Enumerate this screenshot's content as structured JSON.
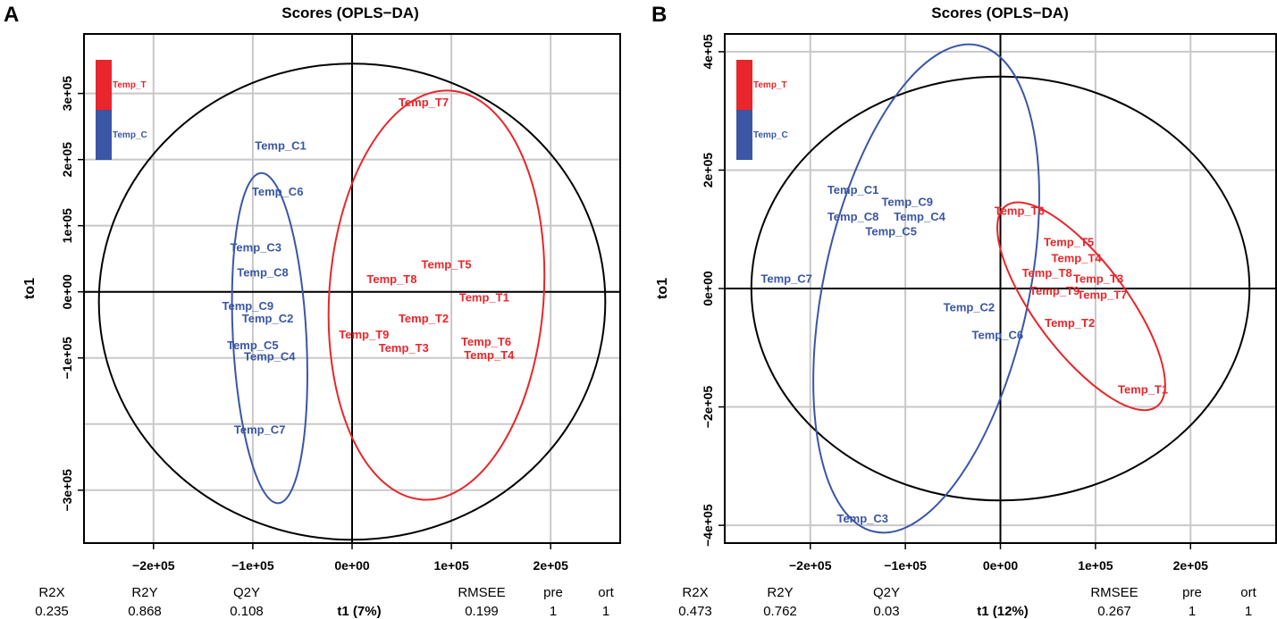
{
  "colors": {
    "temp_t": "#e8262b",
    "temp_c": "#3a56a5",
    "axis": "#000000",
    "grid": "#c8c8c8"
  },
  "chart_data": [
    {
      "panel_letter": "A",
      "type": "scatter",
      "title": "Scores (OPLS−DA)",
      "xlabel": "t1 (7%)",
      "ylabel": "to1",
      "xlim": [
        -270000,
        270000
      ],
      "ylim": [
        -380000,
        390000
      ],
      "xticks": [
        {
          "value": -200000,
          "label": "−2e+05"
        },
        {
          "value": -100000,
          "label": "−1e+05"
        },
        {
          "value": 0,
          "label": "0e+00"
        },
        {
          "value": 100000,
          "label": "1e+05"
        },
        {
          "value": 200000,
          "label": "2e+05"
        }
      ],
      "yticks": [
        {
          "value": 300000,
          "label": "3e+05"
        },
        {
          "value": 200000,
          "label": "2e+05"
        },
        {
          "value": 100000,
          "label": "1e+05"
        },
        {
          "value": 0,
          "label": "0e+00"
        },
        {
          "value": -100000,
          "label": "−1e+05"
        },
        {
          "value": -300000,
          "label": "−3e+05"
        }
      ],
      "xgrid": [
        -200000,
        -100000,
        0,
        100000,
        200000
      ],
      "ygrid": [
        300000,
        200000,
        100000,
        0,
        -100000,
        -200000,
        -300000
      ],
      "grid": true,
      "legend_position": "top-left",
      "legend": [
        {
          "label": "Temp_T",
          "group": "temp_t"
        },
        {
          "label": "Temp_C",
          "group": "temp_c"
        }
      ],
      "points": [
        {
          "label": "Temp_T7",
          "group": "temp_t",
          "x": 72000,
          "y": 285000
        },
        {
          "label": "Temp_T5",
          "group": "temp_t",
          "x": 95000,
          "y": 40000
        },
        {
          "label": "Temp_T8",
          "group": "temp_t",
          "x": 40000,
          "y": 18000
        },
        {
          "label": "Temp_T1",
          "group": "temp_t",
          "x": 133000,
          "y": -10000
        },
        {
          "label": "Temp_T2",
          "group": "temp_t",
          "x": 72000,
          "y": -42000
        },
        {
          "label": "Temp_T9",
          "group": "temp_t",
          "x": 12000,
          "y": -66000
        },
        {
          "label": "Temp_T6",
          "group": "temp_t",
          "x": 135000,
          "y": -77000
        },
        {
          "label": "Temp_T3",
          "group": "temp_t",
          "x": 52000,
          "y": -86000
        },
        {
          "label": "Temp_T4",
          "group": "temp_t",
          "x": 138000,
          "y": -97000
        },
        {
          "label": "Temp_C1",
          "group": "temp_c",
          "x": -72000,
          "y": 220000
        },
        {
          "label": "Temp_C6",
          "group": "temp_c",
          "x": -75000,
          "y": 150000
        },
        {
          "label": "Temp_C3",
          "group": "temp_c",
          "x": -97000,
          "y": 66000
        },
        {
          "label": "Temp_C8",
          "group": "temp_c",
          "x": -90000,
          "y": 28000
        },
        {
          "label": "Temp_C9",
          "group": "temp_c",
          "x": -105000,
          "y": -23000
        },
        {
          "label": "Temp_C2",
          "group": "temp_c",
          "x": -85000,
          "y": -42000
        },
        {
          "label": "Temp_C5",
          "group": "temp_c",
          "x": -100000,
          "y": -82000
        },
        {
          "label": "Temp_C4",
          "group": "temp_c",
          "x": -83000,
          "y": -99000
        },
        {
          "label": "Temp_C7",
          "group": "temp_c",
          "x": -93000,
          "y": -210000
        }
      ],
      "ellipses": [
        {
          "group": "overall",
          "cx": 0,
          "cy": -15000,
          "rx": 255000,
          "ry": 360000,
          "angle": 0
        },
        {
          "group": "temp_c",
          "cx": -83000,
          "cy": -70000,
          "rx": 37000,
          "ry": 250000,
          "angle": -3
        },
        {
          "group": "temp_t",
          "cx": 85000,
          "cy": -5000,
          "rx": 108000,
          "ry": 310000,
          "angle": 4
        }
      ],
      "stats": {
        "headers": [
          "R2X",
          "R2Y",
          "Q2Y",
          "RMSEE",
          "pre",
          "ort"
        ],
        "values": [
          "0.235",
          "0.868",
          "0.108",
          "0.199",
          "1",
          "1"
        ]
      }
    },
    {
      "panel_letter": "B",
      "type": "scatter",
      "title": "Scores (OPLS−DA)",
      "xlabel": "t1 (12%)",
      "ylabel": "to1",
      "xlim": [
        -290000,
        290000
      ],
      "ylim": [
        -430000,
        430000
      ],
      "xticks": [
        {
          "value": -200000,
          "label": "−2e+05"
        },
        {
          "value": -100000,
          "label": "−1e+05"
        },
        {
          "value": 0,
          "label": "0e+00"
        },
        {
          "value": 100000,
          "label": "1e+05"
        },
        {
          "value": 200000,
          "label": "2e+05"
        }
      ],
      "yticks": [
        {
          "value": 400000,
          "label": "4e+05"
        },
        {
          "value": 200000,
          "label": "2e+05"
        },
        {
          "value": 0,
          "label": "0e+00"
        },
        {
          "value": -200000,
          "label": "−2e+05"
        },
        {
          "value": -400000,
          "label": "−4e+05"
        }
      ],
      "xgrid": [
        -200000,
        -100000,
        0,
        100000,
        200000
      ],
      "ygrid": [
        400000,
        200000,
        0,
        -200000,
        -400000
      ],
      "grid": true,
      "legend_position": "top-left",
      "legend": [
        {
          "label": "Temp_T",
          "group": "temp_t"
        },
        {
          "label": "Temp_C",
          "group": "temp_c"
        }
      ],
      "points": [
        {
          "label": "Temp_C1",
          "group": "temp_c",
          "x": -155000,
          "y": 165000
        },
        {
          "label": "Temp_C9",
          "group": "temp_c",
          "x": -98000,
          "y": 145000
        },
        {
          "label": "Temp_C8",
          "group": "temp_c",
          "x": -155000,
          "y": 120000
        },
        {
          "label": "Temp_C4",
          "group": "temp_c",
          "x": -85000,
          "y": 120000
        },
        {
          "label": "Temp_C5",
          "group": "temp_c",
          "x": -115000,
          "y": 95000
        },
        {
          "label": "Temp_C7",
          "group": "temp_c",
          "x": -225000,
          "y": 15000
        },
        {
          "label": "Temp_C2",
          "group": "temp_c",
          "x": -33000,
          "y": -33000
        },
        {
          "label": "Temp_C6",
          "group": "temp_c",
          "x": -3000,
          "y": -80000
        },
        {
          "label": "Temp_C3",
          "group": "temp_c",
          "x": -145000,
          "y": -390000
        },
        {
          "label": "Temp_T6",
          "group": "temp_t",
          "x": 20000,
          "y": 130000
        },
        {
          "label": "Temp_T5",
          "group": "temp_t",
          "x": 72000,
          "y": 77000
        },
        {
          "label": "Temp_T4",
          "group": "temp_t",
          "x": 80000,
          "y": 50000
        },
        {
          "label": "Temp_T8",
          "group": "temp_t",
          "x": 49000,
          "y": 25000
        },
        {
          "label": "Temp_T3",
          "group": "temp_t",
          "x": 103000,
          "y": 15000
        },
        {
          "label": "Temp_T9",
          "group": "temp_t",
          "x": 57000,
          "y": -5000
        },
        {
          "label": "Temp_T7",
          "group": "temp_t",
          "x": 107000,
          "y": -12000
        },
        {
          "label": "Temp_T2",
          "group": "temp_t",
          "x": 73000,
          "y": -60000
        },
        {
          "label": "Temp_T1",
          "group": "temp_t",
          "x": 150000,
          "y": -172000
        }
      ],
      "ellipses": [
        {
          "group": "overall",
          "cx": 0,
          "cy": 0,
          "rx": 262000,
          "ry": 358000,
          "angle": 0
        },
        {
          "group": "temp_c",
          "cx": -78000,
          "cy": 0,
          "rx": 108000,
          "ry": 420000,
          "angle": 12
        },
        {
          "group": "temp_t",
          "cx": 85000,
          "cy": -30000,
          "rx": 48000,
          "ry": 212000,
          "angle": -37
        }
      ],
      "stats": {
        "headers": [
          "R2X",
          "R2Y",
          "Q2Y",
          "RMSEE",
          "pre",
          "ort"
        ],
        "values": [
          "0.473",
          "0.762",
          "0.03",
          "0.267",
          "1",
          "1"
        ]
      }
    }
  ]
}
